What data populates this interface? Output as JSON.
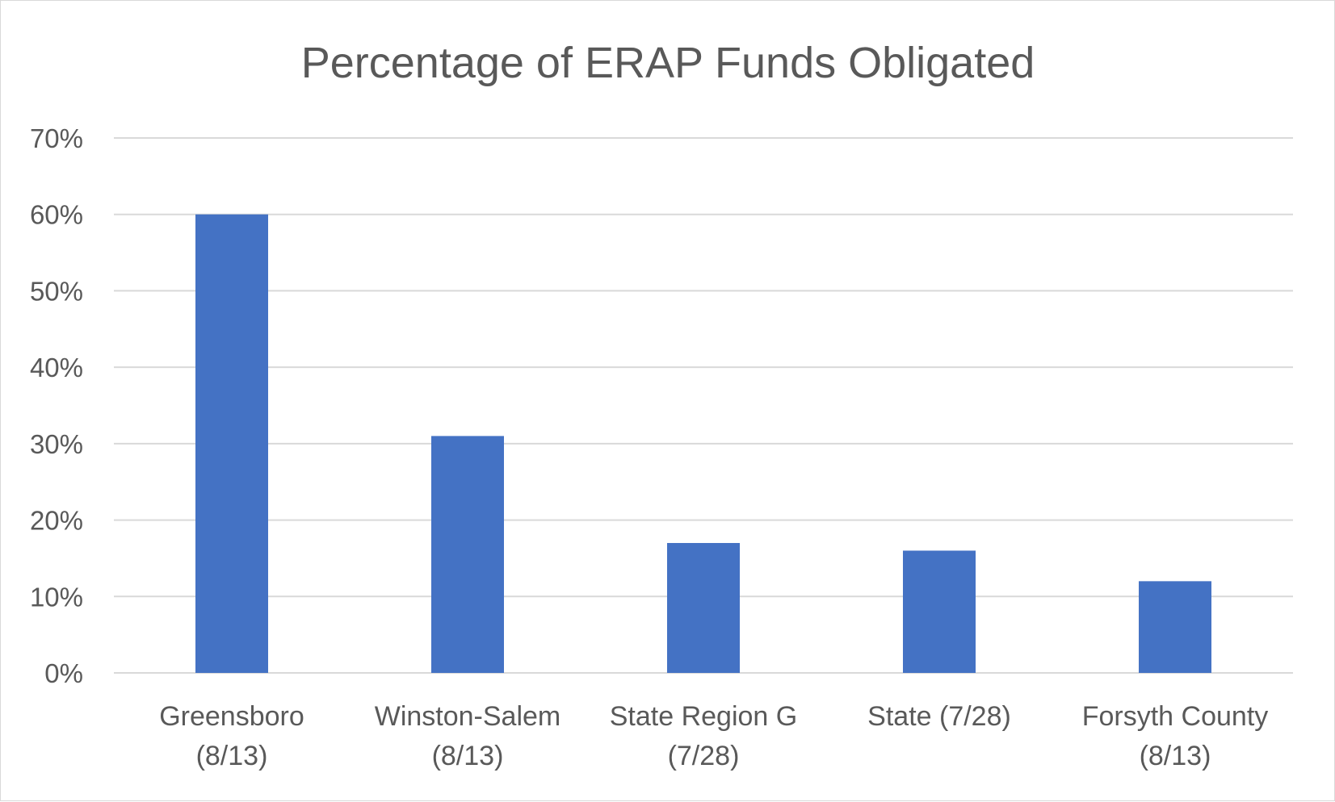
{
  "chart_data": {
    "type": "bar",
    "title": "Percentage of ERAP Funds Obligated",
    "xlabel": "",
    "ylabel": "",
    "categories": [
      [
        "Greensboro",
        "(8/13)"
      ],
      [
        "Winston-Salem",
        "(8/13)"
      ],
      [
        "State Region G",
        "(7/28)"
      ],
      [
        "State (7/28)"
      ],
      [
        "Forsyth County",
        "(8/13)"
      ]
    ],
    "values": [
      60,
      31,
      17,
      16,
      12
    ],
    "ylim": [
      0,
      70
    ],
    "yticks": [
      0,
      10,
      20,
      30,
      40,
      50,
      60,
      70
    ],
    "ytick_labels": [
      "0%",
      "10%",
      "20%",
      "30%",
      "40%",
      "50%",
      "60%",
      "70%"
    ],
    "bar_color": "#4472c4",
    "grid": true,
    "legend": "none"
  }
}
